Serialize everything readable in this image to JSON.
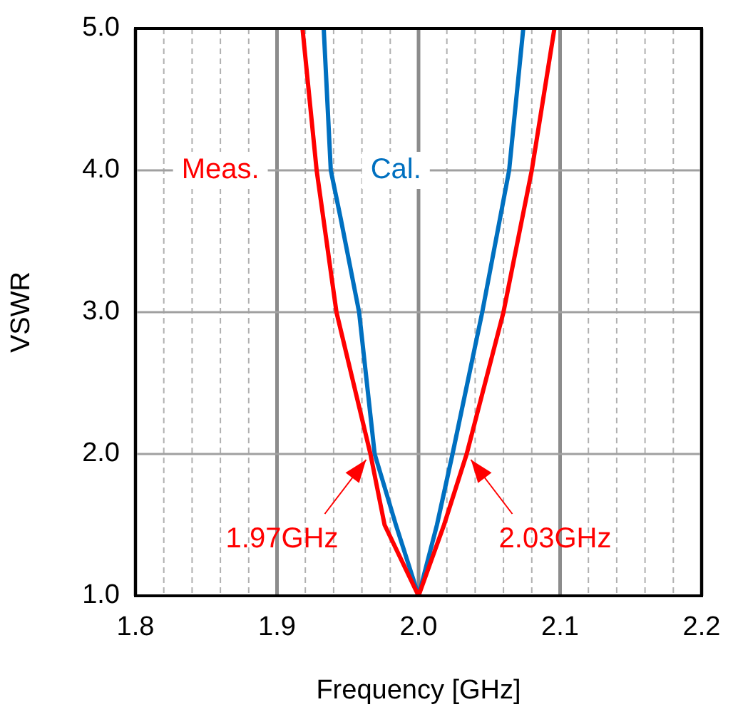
{
  "chart_data": {
    "type": "line",
    "xlabel": "Frequency [GHz]",
    "ylabel": "VSWR",
    "xlim": [
      1.8,
      2.2
    ],
    "ylim": [
      1.0,
      5.0
    ],
    "xticks": [
      {
        "value": 1.8,
        "label": "1.8"
      },
      {
        "value": 1.82,
        "label": null
      },
      {
        "value": 1.84,
        "label": null
      },
      {
        "value": 1.86,
        "label": null
      },
      {
        "value": 1.88,
        "label": null
      },
      {
        "value": 1.9,
        "label": "1.9"
      },
      {
        "value": 1.92,
        "label": null
      },
      {
        "value": 1.94,
        "label": null
      },
      {
        "value": 1.96,
        "label": null
      },
      {
        "value": 1.98,
        "label": null
      },
      {
        "value": 2.0,
        "label": "2.0"
      },
      {
        "value": 2.02,
        "label": null
      },
      {
        "value": 2.04,
        "label": null
      },
      {
        "value": 2.06,
        "label": null
      },
      {
        "value": 2.08,
        "label": null
      },
      {
        "value": 2.1,
        "label": "2.1"
      },
      {
        "value": 2.12,
        "label": null
      },
      {
        "value": 2.14,
        "label": null
      },
      {
        "value": 2.16,
        "label": null
      },
      {
        "value": 2.18,
        "label": null
      },
      {
        "value": 2.2,
        "label": "2.2"
      }
    ],
    "yticks": [
      {
        "value": 1,
        "label": "1.0"
      },
      {
        "value": 2,
        "label": "2.0"
      },
      {
        "value": 3,
        "label": "3.0"
      },
      {
        "value": 4,
        "label": "4.0"
      },
      {
        "value": 5,
        "label": "5.0"
      }
    ],
    "grid": true,
    "legend": false,
    "marker": "none",
    "line_style": "solid",
    "series": [
      {
        "name": "Meas.",
        "color": "#ff0000",
        "x": [
          1.918,
          1.928,
          1.942,
          1.966,
          1.976,
          2.0,
          2.018,
          2.034,
          2.06,
          2.08,
          2.096
        ],
        "values": [
          5,
          4,
          3,
          2,
          1.5,
          1,
          1.5,
          2,
          3,
          4,
          5
        ]
      },
      {
        "name": "Cal.",
        "color": "#0070c0",
        "x": [
          1.933,
          1.938,
          1.945,
          1.958,
          1.969,
          1.984,
          2.0,
          2.013,
          2.024,
          2.045,
          2.064,
          2.074
        ],
        "values": [
          5,
          4,
          3.66,
          3,
          2,
          1.5,
          1,
          1.5,
          2,
          3,
          4,
          5
        ]
      }
    ],
    "annotations": [
      {
        "text": "1.97GHz",
        "x": 1.966,
        "y": 2
      },
      {
        "text": "2.03GHz",
        "x": 2.034,
        "y": 2
      }
    ]
  }
}
